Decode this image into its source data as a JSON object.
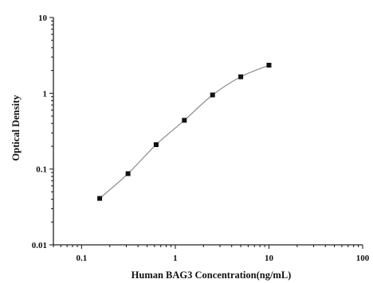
{
  "chart_data": {
    "type": "scatter",
    "title": "",
    "xlabel": "Human BAG3 Concentration(ng/mL)",
    "ylabel": "Optical Density",
    "x_scale": "log",
    "y_scale": "log",
    "xlim": [
      0.05,
      100
    ],
    "ylim": [
      0.01,
      10
    ],
    "x_ticks": [
      {
        "value": 0.1,
        "label": "0.1"
      },
      {
        "value": 1,
        "label": "1"
      },
      {
        "value": 10,
        "label": "10"
      },
      {
        "value": 100,
        "label": "100"
      }
    ],
    "y_ticks": [
      {
        "value": 0.01,
        "label": "0.01"
      },
      {
        "value": 0.1,
        "label": "0.1"
      },
      {
        "value": 1,
        "label": "1"
      },
      {
        "value": 10,
        "label": "10"
      }
    ],
    "series": [
      {
        "x": [
          0.156,
          0.313,
          0.625,
          1.25,
          2.5,
          5,
          10
        ],
        "y": [
          0.041,
          0.087,
          0.21,
          0.44,
          0.95,
          1.65,
          2.35
        ],
        "marker": "square",
        "line": "smooth"
      }
    ],
    "grid": false,
    "legend": "none",
    "colors": {
      "points": "#111111",
      "line": "#8a8a8a",
      "axes": "#222222"
    }
  }
}
